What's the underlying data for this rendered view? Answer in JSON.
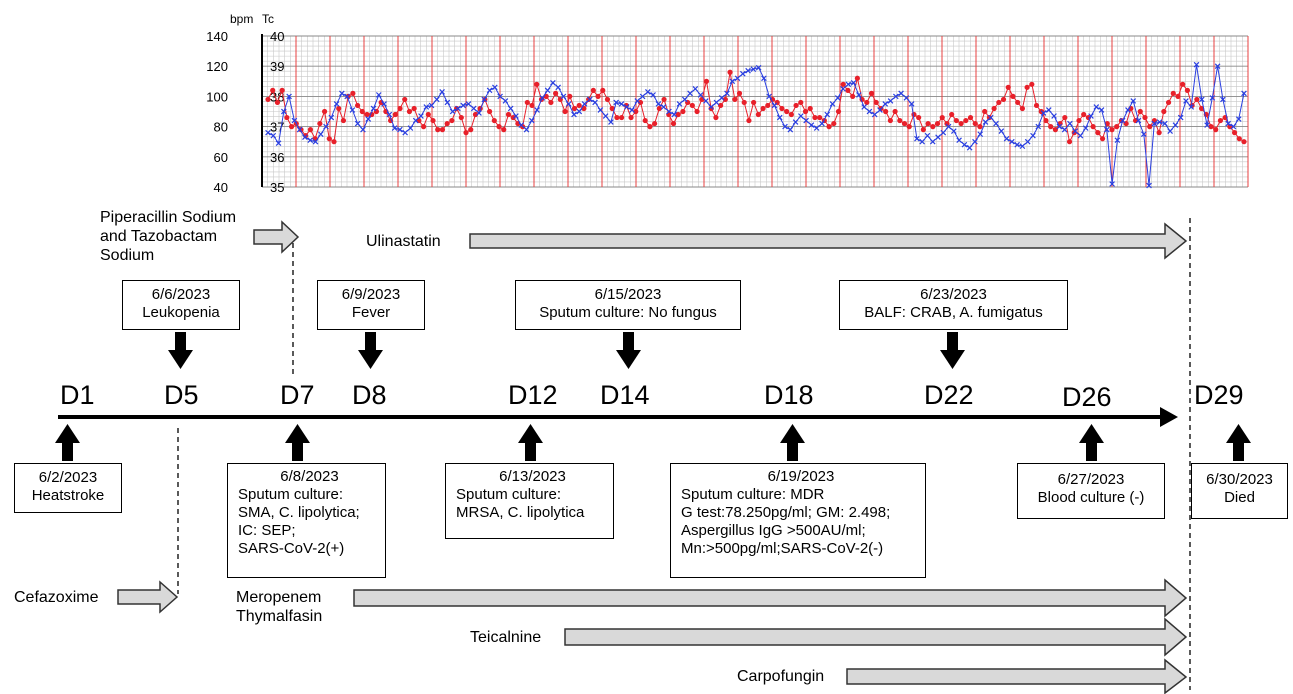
{
  "axes": {
    "left_unit": "bpm",
    "right_unit": "Tc",
    "bpm_ticks": [
      "140",
      "120",
      "100",
      "80",
      "60",
      "40"
    ],
    "tc_ticks": [
      "40",
      "39",
      "38",
      "37",
      "36",
      "35"
    ]
  },
  "chart_data": {
    "type": "line",
    "xlabel": "",
    "x_range": [
      1,
      30
    ],
    "grid": true,
    "series": [
      {
        "axis": "Tc",
        "color": "#e8202a",
        "marker": "circle",
        "values": [
          37.9,
          38.2,
          37.8,
          38.2,
          37.3,
          37.0,
          37.1,
          36.9,
          36.7,
          36.9,
          36.6,
          37.1,
          37.5,
          36.6,
          36.5,
          37.6,
          37.2,
          38.0,
          38.1,
          37.7,
          37.5,
          37.4,
          37.4,
          37.5,
          37.8,
          37.5,
          37.2,
          37.4,
          37.6,
          37.9,
          37.5,
          37.6,
          37.2,
          37.0,
          37.4,
          37.2,
          36.9,
          36.9,
          37.1,
          37.2,
          37.6,
          37.3,
          36.8,
          36.9,
          37.4,
          37.6,
          37.9,
          37.5,
          37.2,
          37.0,
          36.9,
          37.4,
          37.3,
          37.1,
          37.0,
          37.8,
          37.7,
          38.4,
          37.9,
          38.0,
          37.8,
          38.1,
          37.9,
          37.5,
          38.0,
          37.6,
          37.7,
          37.6,
          37.9,
          38.2,
          38.0,
          38.2,
          37.9,
          37.6,
          37.3,
          37.3,
          37.7,
          37.3,
          37.5,
          37.8,
          37.2,
          37.0,
          37.1,
          37.6,
          37.9,
          37.4,
          37.1,
          37.4,
          37.5,
          37.8,
          37.7,
          37.5,
          37.9,
          38.5,
          37.6,
          37.3,
          37.7,
          37.9,
          38.8,
          37.9,
          38.1,
          37.8,
          37.2,
          37.8,
          37.4,
          37.6,
          37.7,
          37.9,
          37.8,
          37.6,
          37.5,
          37.4,
          37.7,
          37.8,
          37.5,
          37.6,
          37.3,
          37.3,
          37.2,
          37.0,
          37.1,
          37.5,
          38.4,
          38.2,
          38.0,
          38.6,
          37.9,
          37.8,
          38.1,
          37.8,
          37.6,
          37.5,
          37.2,
          37.5,
          37.2,
          37.1,
          37.0,
          37.4,
          37.3,
          36.9,
          37.1,
          37.0,
          37.1,
          37.3,
          37.1,
          37.4,
          37.2,
          37.1,
          37.2,
          37.3,
          37.1,
          37.0,
          37.5,
          37.3,
          37.6,
          37.8,
          37.9,
          38.3,
          38.0,
          37.8,
          37.6,
          38.3,
          38.4,
          37.7,
          37.5,
          37.2,
          37.0,
          36.9,
          37.1,
          37.3,
          36.5,
          36.8,
          37.2,
          37.4,
          37.3,
          37.0,
          36.8,
          36.6,
          37.1,
          36.9,
          37.0,
          37.2,
          37.1,
          37.6,
          37.2,
          37.5,
          37.3,
          37.0,
          37.2,
          36.8,
          37.5,
          37.8,
          38.1,
          38.0,
          38.4,
          38.2,
          37.7,
          37.9,
          37.6,
          37.4,
          37.0,
          36.9,
          37.2,
          37.3,
          37.0,
          36.8,
          36.6,
          36.5
        ]
      },
      {
        "axis": "bpm",
        "color": "#2a3fe0",
        "marker": "x",
        "values": [
          76,
          74,
          69,
          90,
          100,
          84,
          78,
          73,
          71,
          70,
          75,
          80,
          86,
          95,
          102,
          100,
          91,
          82,
          78,
          85,
          92,
          101,
          95,
          88,
          79,
          78,
          76,
          79,
          84,
          87,
          93,
          94,
          98,
          103,
          96,
          90,
          92,
          94,
          95,
          92,
          89,
          98,
          104,
          106,
          100,
          97,
          92,
          87,
          81,
          78,
          84,
          91,
          99,
          104,
          109,
          106,
          100,
          95,
          88,
          90,
          95,
          98,
          96,
          91,
          87,
          83,
          96,
          95,
          93,
          91,
          97,
          100,
          103,
          101,
          95,
          93,
          90,
          88,
          95,
          98,
          102,
          105,
          101,
          97,
          93,
          96,
          99,
          102,
          110,
          112,
          115,
          117,
          118,
          119,
          112,
          100,
          94,
          86,
          80,
          78,
          83,
          87,
          84,
          81,
          79,
          82,
          88,
          95,
          99,
          105,
          108,
          109,
          101,
          93,
          90,
          88,
          91,
          95,
          97,
          100,
          102,
          99,
          95,
          72,
          70,
          74,
          70,
          73,
          76,
          80,
          77,
          71,
          68,
          66,
          70,
          75,
          83,
          86,
          82,
          77,
          72,
          70,
          68,
          67,
          70,
          74,
          80,
          89,
          91,
          87,
          80,
          78,
          82,
          77,
          74,
          79,
          87,
          93,
          91,
          78,
          42,
          71,
          84,
          91,
          97,
          84,
          75,
          41,
          82,
          83,
          82,
          77,
          81,
          86,
          97,
          93,
          121,
          98,
          81,
          99,
          120,
          98,
          82,
          80,
          85,
          102
        ]
      }
    ]
  },
  "days": [
    {
      "label": "D1"
    },
    {
      "label": "D5"
    },
    {
      "label": "D7"
    },
    {
      "label": "D8"
    },
    {
      "label": "D12"
    },
    {
      "label": "D14"
    },
    {
      "label": "D18"
    },
    {
      "label": "D22"
    },
    {
      "label": "D26"
    },
    {
      "label": "D29"
    }
  ],
  "events_above": [
    {
      "lines": [
        "6/6/2023",
        "Leukopenia"
      ]
    },
    {
      "lines": [
        "6/9/2023",
        "Fever"
      ]
    },
    {
      "lines": [
        "6/15/2023",
        "Sputum culture: No fungus"
      ]
    },
    {
      "lines": [
        "6/23/2023",
        "BALF: CRAB, A. fumigatus"
      ]
    }
  ],
  "events_below": [
    {
      "lines": [
        "6/2/2023",
        "Heatstroke"
      ]
    },
    {
      "lines": [
        "6/8/2023",
        "Sputum culture:",
        "SMA, C. lipolytica;",
        "IC: SEP;",
        "SARS-CoV-2(+)"
      ]
    },
    {
      "lines": [
        "6/13/2023",
        "Sputum culture:",
        "MRSA, C. lipolytica"
      ]
    },
    {
      "lines": [
        "6/19/2023",
        "Sputum culture: MDR",
        "G test:78.250pg/ml; GM: 2.498;",
        "Aspergillus IgG >500AU/ml;",
        "Mn:>500pg/ml;SARS-CoV-2(-)"
      ]
    },
    {
      "lines": [
        "6/27/2023",
        "Blood culture (-)"
      ]
    },
    {
      "lines": [
        "6/30/2023",
        "Died"
      ]
    }
  ],
  "drugs": {
    "piperacillin": [
      "Piperacillin Sodium",
      "and Tazobactam",
      "Sodium"
    ],
    "ulinastatin": "Ulinastatin",
    "cefazoxime": "Cefazoxime",
    "meropenem": [
      "Meropenem",
      "Thymalfasin"
    ],
    "teicalnine": "Teicalnine",
    "carpofungin": "Carpofungin"
  },
  "colors": {
    "temperature_line": "#e8202a",
    "heart_rate_line": "#2a3fe0",
    "arrow_fill": "#d9d9d9",
    "grid_minor": "#c8c8c8",
    "grid_day": "#e84040"
  }
}
